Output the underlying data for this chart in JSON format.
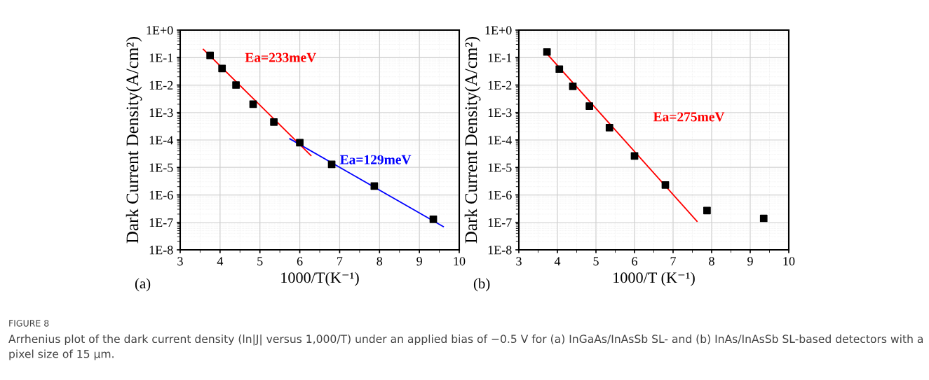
{
  "chart_data": [
    {
      "type": "scatter",
      "xlabel": "1000/T(K⁻¹)",
      "ylabel": "Dark Current Density(A/cm²)",
      "log": "y",
      "grid": true,
      "marker": "square",
      "xlim": [
        3,
        10
      ],
      "xticks": [
        3,
        4,
        5,
        6,
        7,
        8,
        9,
        10
      ],
      "ylim": [
        1e-08,
        1
      ],
      "yticks": [
        {
          "value": 1,
          "label": "1E+0"
        },
        {
          "value": 0.1,
          "label": "1E-1"
        },
        {
          "value": 0.01,
          "label": "1E-2"
        },
        {
          "value": 0.001,
          "label": "1E-3"
        },
        {
          "value": 0.0001,
          "label": "1E-4"
        },
        {
          "value": 1e-05,
          "label": "1E-5"
        },
        {
          "value": 1e-06,
          "label": "1E-6"
        },
        {
          "value": 1e-07,
          "label": "1E-7"
        },
        {
          "value": 1e-08,
          "label": "1E-8"
        }
      ],
      "series": [
        {
          "color": "#000000",
          "x": [
            3.75,
            4.05,
            4.4,
            4.83,
            5.35,
            6.0,
            6.8,
            7.87,
            9.35
          ],
          "values": [
            0.12,
            0.04,
            0.01,
            0.002,
            0.00045,
            8e-05,
            1.3e-05,
            2.1e-06,
            1.3e-07
          ]
        },
        {
          "type": "line",
          "marker": "none",
          "color": "#ff0000",
          "x": [
            3.58,
            6.28
          ],
          "values": [
            0.2,
            2.7e-05
          ]
        },
        {
          "type": "line",
          "marker": "none",
          "color": "#0000ff",
          "x": [
            5.75,
            9.6
          ],
          "values": [
            0.00011,
            7e-08
          ]
        }
      ],
      "annotations": [
        "Ea=233meV",
        "Ea=129meV",
        "(a)",
        "FIGURE 8",
        "Arrhenius plot of the dark current density (ln|J| versus 1,000/T) under an applied bias of −0.5 V for (a) InGaAs/InAsSb SL- and (b) InAs/InAsSb SL-based detectors with a pixel size of 15 μm."
      ]
    },
    {
      "type": "scatter",
      "xlabel": "1000/T (K⁻¹)",
      "ylabel": "Dark Current Density(A/cm²)",
      "log": "y",
      "grid": true,
      "marker": "square",
      "xlim": [
        3,
        10
      ],
      "xticks": [
        3,
        4,
        5,
        6,
        7,
        8,
        9,
        10
      ],
      "ylim": [
        1e-08,
        1
      ],
      "yticks": [
        {
          "value": 1,
          "label": "1E+0"
        },
        {
          "value": 0.1,
          "label": "1E-1"
        },
        {
          "value": 0.01,
          "label": "1E-2"
        },
        {
          "value": 0.001,
          "label": "1E-3"
        },
        {
          "value": 0.0001,
          "label": "1E-4"
        },
        {
          "value": 1e-05,
          "label": "1E-5"
        },
        {
          "value": 1e-06,
          "label": "1E-6"
        },
        {
          "value": 1e-07,
          "label": "1E-7"
        },
        {
          "value": 1e-08,
          "label": "1E-8"
        }
      ],
      "series": [
        {
          "color": "#000000",
          "x": [
            3.73,
            4.05,
            4.4,
            4.83,
            5.35,
            6.0,
            6.8,
            7.88,
            9.35
          ],
          "values": [
            0.16,
            0.038,
            0.009,
            0.0017,
            0.00028,
            2.6e-05,
            2.3e-06,
            2.7e-07,
            1.4e-07
          ]
        },
        {
          "type": "line",
          "marker": "none",
          "color": "#ff0000",
          "x": [
            3.67,
            7.62
          ],
          "values": [
            0.17,
            1.1e-07
          ]
        }
      ],
      "annotations": [
        "Ea=275meV",
        "(b)"
      ]
    }
  ]
}
